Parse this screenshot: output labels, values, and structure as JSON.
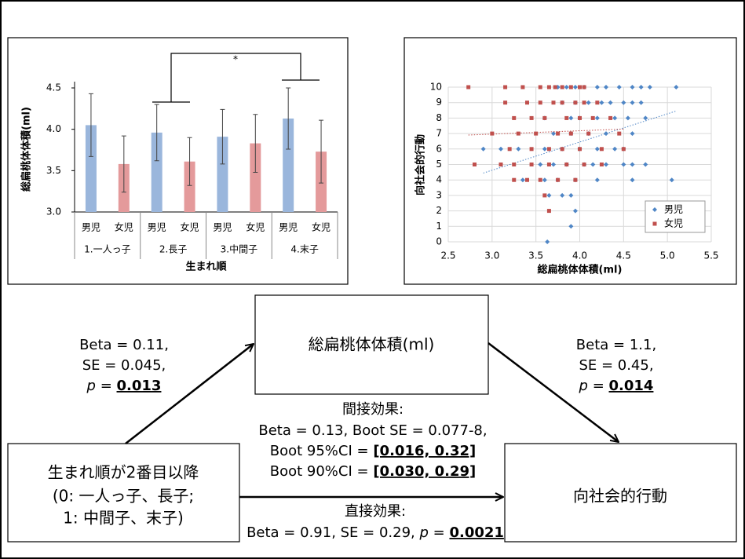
{
  "chart_data": [
    {
      "type": "bar",
      "ylabel": "総扁桃体体積(ml)",
      "xlabel": "生まれ順",
      "categories": [
        "1.一人っ子",
        "2.長子",
        "3.中間子",
        "4.末子"
      ],
      "series": [
        {
          "name": "男児",
          "color": "#9ab6dc",
          "values": [
            4.05,
            3.96,
            3.91,
            4.13
          ],
          "errors": [
            0.38,
            0.34,
            0.33,
            0.37
          ]
        },
        {
          "name": "女児",
          "color": "#e49a9b",
          "values": [
            3.58,
            3.61,
            3.83,
            3.73
          ],
          "errors": [
            0.34,
            0.29,
            0.35,
            0.38
          ]
        }
      ],
      "annotation": "*",
      "ylim": [
        3,
        4.5
      ],
      "yticks": [
        {
          "value": 3,
          "label": "3.0"
        },
        3.5,
        {
          "value": 4,
          "label": "4.0"
        },
        4.5
      ]
    },
    {
      "type": "scatter",
      "xlabel": "総扁桃体体積(ml)",
      "ylabel": "向社会的行動",
      "xlim": [
        2.5,
        5.5
      ],
      "xticks": [
        2.5,
        {
          "value": 3,
          "label": "3.0"
        },
        3.5,
        {
          "value": 4,
          "label": "4.0"
        },
        4.5,
        {
          "value": 5,
          "label": "5.0"
        },
        5.5
      ],
      "ylim": [
        0,
        10
      ],
      "yticks": [
        0,
        1,
        2,
        3,
        4,
        5,
        6,
        7,
        8,
        9,
        10
      ],
      "grid": true,
      "legend": "lower right",
      "trendline": true,
      "series": [
        {
          "name": "男児",
          "color": "#4f86c6",
          "marker": "diamond",
          "x": [
            3.75,
            3.85,
            3.95,
            4.05,
            4.2,
            4.3,
            4.45,
            4.6,
            4.7,
            4.8,
            5.1,
            3.8,
            3.95,
            4.1,
            4.25,
            4.35,
            4.5,
            4.6,
            4.7,
            3.6,
            3.9,
            4.0,
            4.2,
            4.4,
            4.55,
            4.75,
            3.7,
            3.9,
            4.1,
            4.3,
            4.6,
            2.9,
            3.1,
            3.3,
            3.6,
            3.8,
            4.0,
            4.2,
            4.4,
            4.5,
            3.55,
            3.7,
            3.85,
            4.05,
            4.15,
            4.3,
            4.5,
            4.6,
            4.75,
            3.35,
            3.6,
            3.75,
            3.95,
            4.2,
            4.6,
            5.05,
            3.65,
            3.8,
            3.9,
            3.95,
            3.9,
            3.63
          ],
          "values": [
            10,
            10,
            10,
            10,
            10,
            10,
            10,
            10,
            10,
            10,
            10,
            9,
            9,
            9,
            9,
            9,
            9,
            9,
            9,
            8,
            8,
            8,
            8,
            8,
            8,
            8,
            7,
            7,
            7,
            7,
            7,
            6,
            6,
            6,
            6,
            6,
            6,
            6,
            6,
            6,
            5,
            5,
            5,
            5,
            5,
            5,
            5,
            5,
            5,
            4,
            4,
            4,
            4,
            4,
            4,
            4,
            3,
            3,
            3,
            2,
            1,
            0
          ]
        },
        {
          "name": "女児",
          "color": "#c0504d",
          "marker": "square",
          "x": [
            2.73,
            3.15,
            3.35,
            3.55,
            3.65,
            3.72,
            3.8,
            3.9,
            4.0,
            4.05,
            3.15,
            3.4,
            3.55,
            3.7,
            3.8,
            3.95,
            4.05,
            4.2,
            3.25,
            3.45,
            3.6,
            3.85,
            4.0,
            4.15,
            4.35,
            3.0,
            3.3,
            3.5,
            3.75,
            3.9,
            4.1,
            4.45,
            3.2,
            3.45,
            3.65,
            3.8,
            4.0,
            4.25,
            4.5,
            2.8,
            3.1,
            3.25,
            3.45,
            3.65,
            3.85,
            4.05,
            4.25,
            3.25,
            3.4,
            3.55,
            3.75,
            3.95,
            3.6,
            3.65
          ],
          "values": [
            10,
            10,
            10,
            10,
            10,
            10,
            10,
            10,
            10,
            10,
            9,
            9,
            9,
            9,
            9,
            9,
            9,
            9,
            8,
            8,
            8,
            8,
            8,
            8,
            8,
            7,
            7,
            7,
            7,
            7,
            7,
            7,
            6,
            6,
            6,
            6,
            6,
            6,
            6,
            5,
            5,
            5,
            5,
            5,
            5,
            5,
            5,
            4,
            4,
            4,
            4,
            4,
            3,
            2
          ]
        }
      ]
    }
  ],
  "diagram": {
    "nodes": [
      {
        "lines": [
          "総扁桃体体積(ml)"
        ]
      },
      {
        "lines": [
          "生まれ順が2番目以降",
          "(0: 一人っ子、長子;",
          "1: 中間子、末子)"
        ]
      },
      {
        "lines": [
          "向社会的行動"
        ]
      }
    ],
    "labels": [
      {
        "lines": [
          [
            {
              "text": "Beta = 0.11,"
            }
          ],
          [
            {
              "text": "SE = 0.045,"
            }
          ],
          [
            {
              "text": "p",
              "style": "italic"
            },
            {
              "text": " = "
            },
            {
              "text": "0.013",
              "style": "bold-underline"
            }
          ]
        ]
      },
      {
        "lines": [
          [
            {
              "text": "Beta = 1.1,"
            }
          ],
          [
            {
              "text": "SE = 0.45,"
            }
          ],
          [
            {
              "text": "p",
              "style": "italic"
            },
            {
              "text": " = "
            },
            {
              "text": "0.014",
              "style": "bold-underline"
            }
          ]
        ]
      },
      {
        "lines": [
          [
            {
              "text": "間接効果:"
            }
          ],
          [
            {
              "text": "Beta = 0.13, Boot SE = 0.077-8,"
            }
          ],
          [
            {
              "text": "Boot 95%CI = "
            },
            {
              "text": "[0.016, 0.32]",
              "style": "bold-underline"
            }
          ],
          [
            {
              "text": "Boot 90%CI = "
            },
            {
              "text": "[0.030, 0.29]",
              "style": "bold-underline"
            }
          ]
        ]
      },
      {
        "lines": [
          [
            {
              "text": "直接効果:"
            }
          ],
          [
            {
              "text": "Beta = 0.91, SE = 0.29, "
            },
            {
              "text": "p",
              "style": "italic"
            },
            {
              "text": " = "
            },
            {
              "text": "0.0021",
              "style": "bold-underline"
            }
          ]
        ]
      }
    ]
  }
}
